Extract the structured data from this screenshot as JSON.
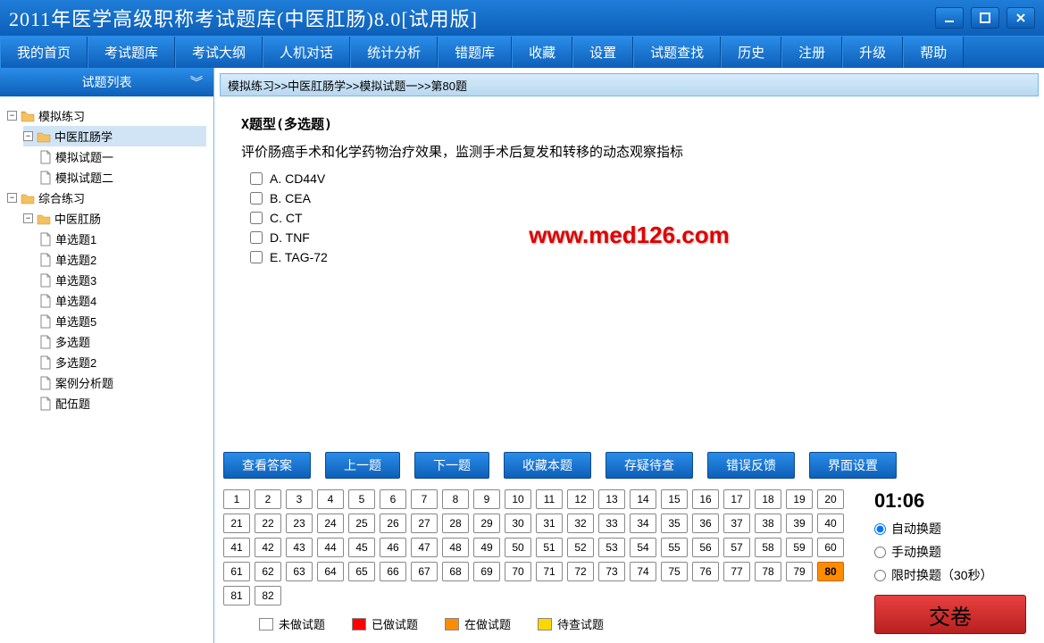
{
  "window": {
    "title": "2011年医学高级职称考试题库(中医肛肠)8.0[试用版]"
  },
  "menu": {
    "items": [
      "我的首页",
      "考试题库",
      "考试大纲",
      "人机对话",
      "统计分析",
      "错题库",
      "收藏",
      "设置",
      "试题查找",
      "历史",
      "注册",
      "升级",
      "帮助"
    ]
  },
  "sidebar": {
    "title": "试题列表",
    "tree": {
      "n1": "模拟练习",
      "n1_1": "中医肛肠学",
      "n1_1_1": "模拟试题一",
      "n1_1_2": "模拟试题二",
      "n2": "综合练习",
      "n2_1": "中医肛肠",
      "n2_1_1": "单选题1",
      "n2_1_2": "单选题2",
      "n2_1_3": "单选题3",
      "n2_1_4": "单选题4",
      "n2_1_5": "单选题5",
      "n2_1_6": "多选题",
      "n2_1_7": "多选题2",
      "n2_1_8": "案例分析题",
      "n2_1_9": "配伍题"
    }
  },
  "breadcrumb": {
    "text": "模拟练习>>中医肛肠学>>模拟试题一>>第80题"
  },
  "question": {
    "type_label": "X题型(多选题)",
    "text": "评价肠癌手术和化学药物治疗效果，监测手术后复发和转移的动态观察指标",
    "options": {
      "a": "A. CD44V",
      "b": "B. CEA",
      "c": "C. CT",
      "d": "D. TNF",
      "e": "E. TAG-72"
    },
    "watermark": "www.med126.com"
  },
  "actions": {
    "view_answer": "查看答案",
    "prev": "上一题",
    "next": "下一题",
    "favorite": "收藏本题",
    "doubt": "存疑待查",
    "feedback": "错误反馈",
    "ui_settings": "界面设置"
  },
  "grid": {
    "total": 82,
    "current": 80
  },
  "legend": {
    "not_done": "未做试题",
    "done": "已做试题",
    "doing": "在做试题",
    "pending": "待查试题",
    "colors": {
      "not_done": "#ffffff",
      "done": "#ff0000",
      "doing": "#ff8c00",
      "pending": "#ffd700"
    }
  },
  "timer": {
    "value": "01:06"
  },
  "modes": {
    "auto": "自动换题",
    "manual": "手动换题",
    "timed": "限时换题（30秒）"
  },
  "submit": {
    "label": "交卷"
  },
  "colors": {
    "primary_blue_light": "#2a8de8",
    "primary_blue_dark": "#0d5fb8",
    "border_blue": "#7ab8e8",
    "submit_red": "#b82020",
    "watermark_red": "#e00000"
  }
}
